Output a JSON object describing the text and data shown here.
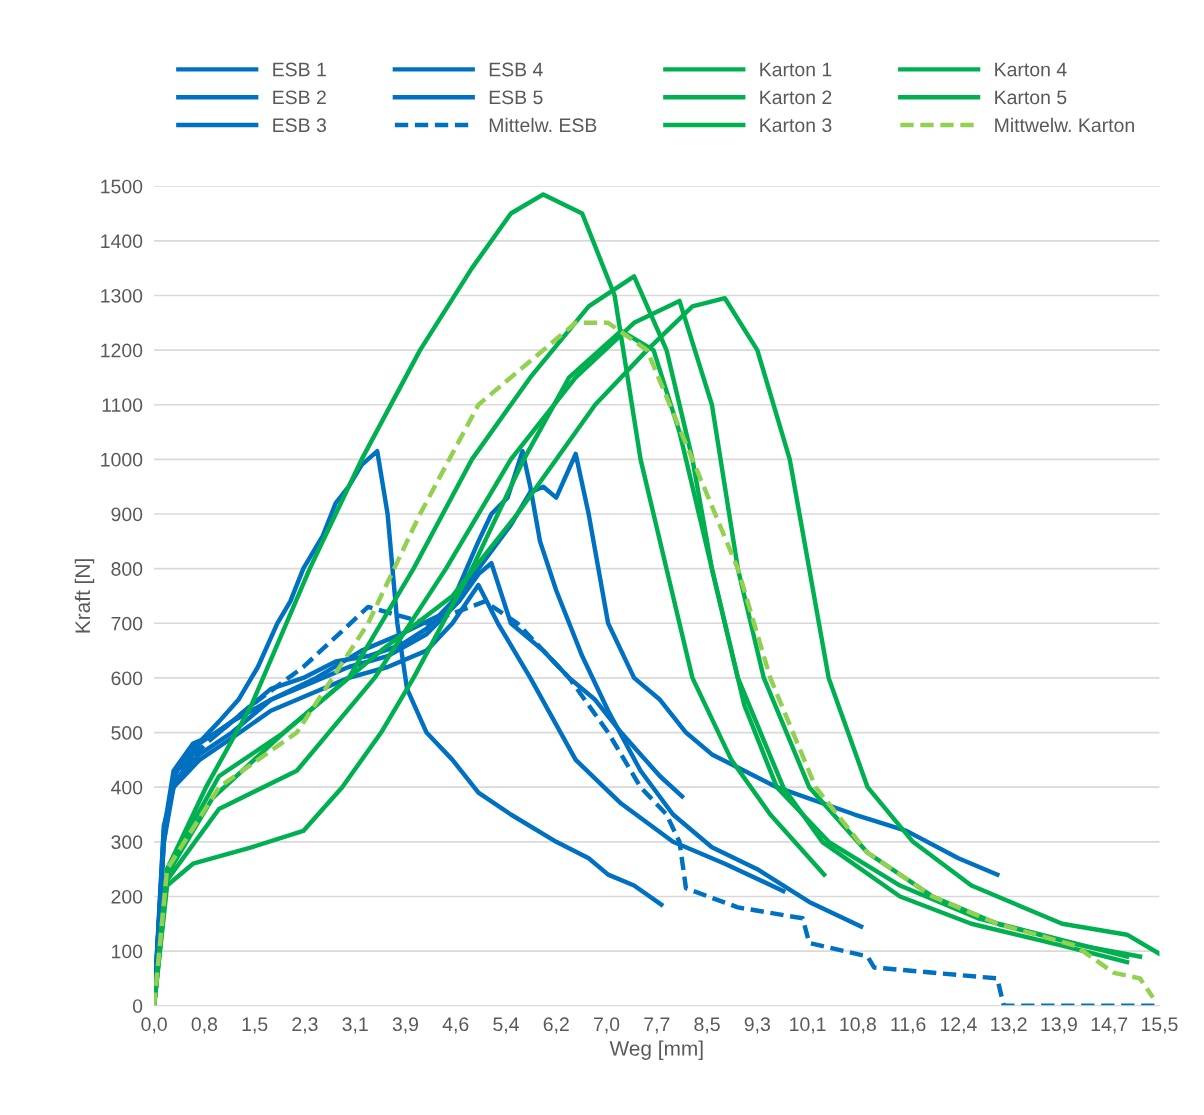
{
  "chart_data": {
    "type": "line",
    "xlabel": "Weg [mm]",
    "ylabel": "Kraft [N]",
    "legend": "top",
    "grid": "y",
    "marker": "none",
    "xlim": [
      0,
      15.5
    ],
    "ylim": [
      0,
      1500
    ],
    "xticks": [
      {
        "value": 0,
        "label": "0,0"
      },
      {
        "value": 0.775,
        "label": "0,8"
      },
      {
        "value": 1.55,
        "label": "1,5"
      },
      {
        "value": 2.325,
        "label": "2,3"
      },
      {
        "value": 3.1,
        "label": "3,1"
      },
      {
        "value": 3.875,
        "label": "3,9"
      },
      {
        "value": 4.65,
        "label": "4,6"
      },
      {
        "value": 5.425,
        "label": "5,4"
      },
      {
        "value": 6.2,
        "label": "6,2"
      },
      {
        "value": 6.975,
        "label": "7,0"
      },
      {
        "value": 7.75,
        "label": "7,7"
      },
      {
        "value": 8.525,
        "label": "8,5"
      },
      {
        "value": 9.3,
        "label": "9,3"
      },
      {
        "value": 10.075,
        "label": "10,1"
      },
      {
        "value": 10.85,
        "label": "10,8"
      },
      {
        "value": 11.625,
        "label": "11,6"
      },
      {
        "value": 12.4,
        "label": "12,4"
      },
      {
        "value": 13.175,
        "label": "13,2"
      },
      {
        "value": 13.95,
        "label": "13,9"
      },
      {
        "value": 14.725,
        "label": "14,7"
      },
      {
        "value": 15.5,
        "label": "15,5"
      }
    ],
    "yticks": [
      0,
      100,
      200,
      300,
      400,
      500,
      600,
      700,
      800,
      900,
      1000,
      1100,
      1200,
      1300,
      1400,
      1500
    ],
    "series": [
      {
        "name": "ESB 1",
        "color": "#0070c0",
        "line_style": "solid",
        "x": [
          0,
          0.15,
          0.3,
          0.6,
          1.0,
          1.3,
          1.6,
          1.9,
          2.1,
          2.3,
          2.6,
          2.8,
          3.0,
          3.2,
          3.44,
          3.6,
          3.75,
          3.9,
          4.2,
          4.6,
          5.0,
          5.5,
          6.2,
          6.7,
          7.0,
          7.4,
          7.82
        ],
        "values": [
          0,
          300,
          420,
          470,
          520,
          560,
          620,
          700,
          740,
          800,
          860,
          920,
          950,
          990,
          1015,
          900,
          700,
          580,
          500,
          450,
          390,
          350,
          300,
          270,
          240,
          220,
          185
        ]
      },
      {
        "name": "ESB 2",
        "color": "#0070c0",
        "line_style": "solid",
        "x": [
          0,
          0.15,
          0.3,
          0.6,
          1.0,
          1.4,
          1.8,
          2.3,
          2.8,
          3.3,
          3.8,
          4.2,
          4.6,
          5.0,
          5.2,
          5.45,
          5.68,
          5.8,
          5.95,
          6.2,
          6.6,
          7.0,
          7.5,
          8.0,
          8.6,
          9.3,
          10.1,
          10.9
        ],
        "values": [
          0,
          320,
          430,
          480,
          500,
          540,
          580,
          600,
          630,
          640,
          660,
          690,
          740,
          850,
          900,
          930,
          1015,
          950,
          850,
          760,
          640,
          540,
          430,
          350,
          290,
          250,
          190,
          145
        ]
      },
      {
        "name": "ESB 3",
        "color": "#0070c0",
        "line_style": "solid",
        "x": [
          0,
          0.15,
          0.3,
          0.7,
          1.2,
          1.8,
          2.5,
          3.2,
          3.8,
          4.5,
          5.0,
          5.5,
          5.8,
          6.0,
          6.2,
          6.35,
          6.5,
          6.7,
          7.0,
          7.4,
          7.8,
          8.2,
          8.6,
          9.6,
          10.8,
          11.6,
          12.4,
          13.0
        ],
        "values": [
          0,
          330,
          400,
          480,
          520,
          560,
          600,
          650,
          680,
          720,
          800,
          880,
          940,
          950,
          930,
          970,
          1010,
          900,
          700,
          600,
          560,
          500,
          460,
          400,
          350,
          320,
          270,
          240
        ]
      },
      {
        "name": "ESB 4",
        "color": "#0070c0",
        "line_style": "solid",
        "x": [
          0,
          0.15,
          0.3,
          0.7,
          1.2,
          1.8,
          2.4,
          3.0,
          3.6,
          4.2,
          4.7,
          5.0,
          5.2,
          5.5,
          6.0,
          6.4,
          6.8,
          7.2,
          7.5,
          7.8,
          8.14
        ],
        "values": [
          0,
          310,
          410,
          460,
          500,
          560,
          590,
          620,
          640,
          680,
          740,
          790,
          810,
          700,
          650,
          600,
          560,
          500,
          460,
          420,
          383
        ]
      },
      {
        "name": "ESB 5",
        "color": "#0070c0",
        "line_style": "solid",
        "x": [
          0,
          0.15,
          0.3,
          0.7,
          1.2,
          1.8,
          2.4,
          3.0,
          3.6,
          4.2,
          4.6,
          5.0,
          5.3,
          5.8,
          6.5,
          7.2,
          8.0,
          8.8,
          9.7
        ],
        "values": [
          0,
          300,
          400,
          450,
          490,
          540,
          570,
          600,
          620,
          650,
          700,
          770,
          700,
          600,
          450,
          370,
          300,
          260,
          210
        ]
      },
      {
        "name": "Mittelw. ESB",
        "color": "#0070c0",
        "line_style": "dashed",
        "x": [
          0,
          0.15,
          0.3,
          0.8,
          1.5,
          2.3,
          3.3,
          4.2,
          5.1,
          5.6,
          6.4,
          7.0,
          7.5,
          7.9,
          8.1,
          8.2,
          9.0,
          10.0,
          10.1,
          11.0,
          11.1,
          13.0,
          13.1,
          15.5
        ],
        "values": [
          0,
          310,
          420,
          480,
          550,
          620,
          730,
          700,
          740,
          700,
          600,
          500,
          400,
          350,
          300,
          215,
          180,
          160,
          115,
          90,
          70,
          50,
          0,
          0
        ]
      },
      {
        "name": "Karton 1",
        "color": "#00b050",
        "line_style": "solid",
        "x": [
          0,
          0.2,
          0.8,
          1.5,
          2.4,
          3.2,
          4.1,
          4.9,
          5.5,
          6.0,
          6.6,
          7.1,
          7.5,
          7.9,
          8.3,
          8.9,
          9.5,
          10.33
        ],
        "values": [
          0,
          250,
          400,
          550,
          800,
          1000,
          1200,
          1350,
          1450,
          1485,
          1450,
          1300,
          1000,
          800,
          600,
          450,
          350,
          240
        ]
      },
      {
        "name": "Karton 2",
        "color": "#00b050",
        "line_style": "solid",
        "x": [
          0,
          0.2,
          1.0,
          2.0,
          3.0,
          4.0,
          4.9,
          5.8,
          6.7,
          7.4,
          7.9,
          8.3,
          8.6,
          9.0,
          9.7,
          10.3,
          11.5,
          12.6,
          14.0,
          15.0
        ],
        "values": [
          0,
          250,
          420,
          500,
          600,
          800,
          1000,
          1150,
          1280,
          1335,
          1200,
          1000,
          800,
          600,
          400,
          300,
          200,
          150,
          110,
          80
        ]
      },
      {
        "name": "Karton 3",
        "color": "#00b050",
        "line_style": "solid",
        "x": [
          0,
          0.2,
          1.0,
          2.2,
          3.4,
          4.5,
          5.5,
          6.5,
          7.4,
          8.1,
          8.6,
          9.0,
          9.4,
          10.1,
          11.0,
          12.0,
          13.0,
          14.3,
          15.2
        ],
        "values": [
          0,
          230,
          360,
          430,
          600,
          800,
          1000,
          1150,
          1250,
          1290,
          1100,
          800,
          600,
          400,
          280,
          200,
          150,
          110,
          90
        ]
      },
      {
        "name": "Karton 4",
        "color": "#00b050",
        "line_style": "solid",
        "x": [
          0,
          0.2,
          0.9,
          2.0,
          3.5,
          4.6,
          5.6,
          6.8,
          7.6,
          8.3,
          8.8,
          9.3,
          9.8,
          10.1,
          10.4,
          11.0,
          11.7,
          12.6,
          14.0,
          15.0,
          15.5
        ],
        "values": [
          0,
          240,
          380,
          500,
          650,
          750,
          900,
          1100,
          1200,
          1280,
          1295,
          1200,
          1000,
          800,
          600,
          400,
          300,
          220,
          150,
          130,
          95
        ]
      },
      {
        "name": "Karton 5",
        "color": "#00b050",
        "line_style": "solid",
        "x": [
          0,
          0.2,
          0.6,
          1.5,
          2.3,
          2.9,
          3.5,
          4.0,
          4.9,
          5.7,
          6.4,
          7.2,
          7.7,
          8.1,
          8.6,
          9.1,
          9.6,
          10.4,
          11.5,
          12.7,
          14.0,
          15.0
        ],
        "values": [
          0,
          220,
          260,
          290,
          320,
          400,
          500,
          600,
          800,
          1000,
          1150,
          1235,
          1200,
          1050,
          800,
          550,
          400,
          300,
          220,
          160,
          120,
          90
        ]
      },
      {
        "name": "Mittwelw. Karton",
        "color": "#92d050",
        "line_style": "dashed",
        "x": [
          0,
          0.2,
          1.0,
          2.2,
          3.3,
          4.1,
          5.0,
          6.5,
          7.0,
          7.6,
          8.3,
          9.0,
          9.5,
          10.2,
          11.0,
          12.0,
          13.0,
          14.2,
          14.8,
          15.2,
          15.4
        ],
        "values": [
          0,
          250,
          400,
          500,
          700,
          900,
          1100,
          1250,
          1250,
          1200,
          1000,
          800,
          600,
          400,
          280,
          200,
          150,
          110,
          60,
          50,
          15
        ]
      }
    ]
  }
}
